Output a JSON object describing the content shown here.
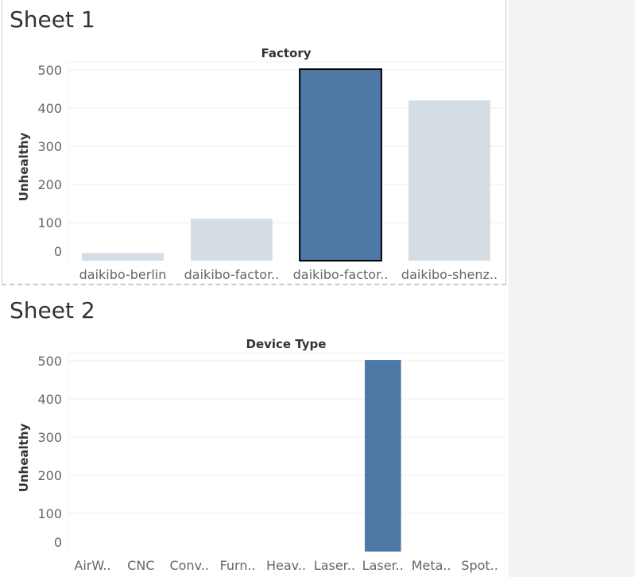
{
  "sheets": [
    {
      "title": "Sheet 1"
    },
    {
      "title": "Sheet 2"
    }
  ],
  "colors": {
    "selected": "#4e79a7",
    "unselected": "#d4dce4",
    "gridline": "#ececec",
    "tick_text": "#666666",
    "label_text": "#333333"
  },
  "chart_data": [
    {
      "type": "bar",
      "title": "Factory",
      "xlabel": "",
      "ylabel": "Unhealthy",
      "ylim": [
        0,
        500
      ],
      "yticks": [
        0,
        100,
        200,
        300,
        400,
        500
      ],
      "categories": [
        "daikibo-berlin",
        "daikibo-factor..",
        "daikibo-factor..",
        "daikibo-shenz.."
      ],
      "values": [
        20,
        110,
        502,
        420
      ],
      "selected_index": 2,
      "grid": true
    },
    {
      "type": "bar",
      "title": "Device Type",
      "xlabel": "",
      "ylabel": "Unhealthy",
      "ylim": [
        0,
        500
      ],
      "yticks": [
        0,
        100,
        200,
        300,
        400,
        500
      ],
      "categories": [
        "AirW..",
        "CNC",
        "Conv..",
        "Furn..",
        "Heav..",
        "Laser..",
        "Laser..",
        "Meta..",
        "Spot.."
      ],
      "values": [
        0,
        0,
        0,
        0,
        0,
        0,
        502,
        0,
        0
      ],
      "selected_index": -1,
      "grid": true
    }
  ]
}
